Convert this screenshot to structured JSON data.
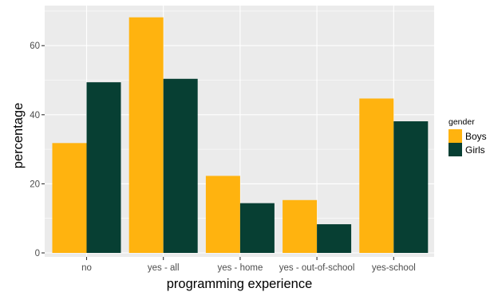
{
  "chart_data": {
    "type": "bar",
    "xlabel": "programming experience",
    "ylabel": "percentage",
    "categories": [
      "no",
      "yes - all",
      "yes - home",
      "yes - out-of-school",
      "yes-school"
    ],
    "series": [
      {
        "name": "Boys",
        "values": [
          31.8,
          68.2,
          22.3,
          15.3,
          44.7
        ]
      },
      {
        "name": "Girls",
        "values": [
          49.4,
          50.4,
          14.4,
          8.3,
          38.1
        ]
      }
    ],
    "y_ticks": [
      0,
      20,
      40,
      60
    ],
    "ylim": [
      0,
      71.6
    ],
    "grid": true,
    "legend": {
      "title": "gender",
      "placement": "right"
    },
    "colors": {
      "Boys": "#FFB30F",
      "Girls": "#073F33",
      "panel": "#EBEBEB",
      "grid": "#FFFFFF"
    }
  }
}
